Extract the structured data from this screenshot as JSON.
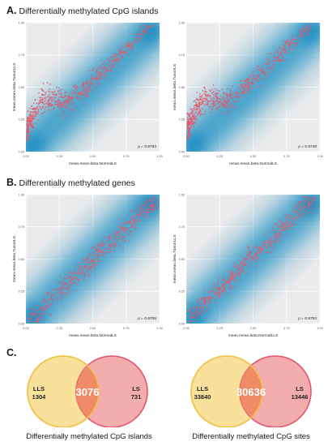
{
  "sections": {
    "a": {
      "letter": "A.",
      "title": "Differentially methylated CpG islands"
    },
    "b": {
      "letter": "B.",
      "title": "Differentially methylated genes"
    },
    "c": {
      "letter": "C."
    }
  },
  "colors": {
    "density_light": "#d6e7f1",
    "density_dark": "#1b8fc3",
    "points": "#e8586a",
    "panel_bg": "#ebebeb",
    "venn_left": "#f7d77a",
    "venn_right": "#ef8a8d",
    "venn_overlap": "#ee8b65"
  },
  "chart_data": [
    {
      "type": "scatter",
      "title": "",
      "xlabel": "mean.mean.beta.NormalLS",
      "ylabel": "mean.mean.beta.TumorLLS",
      "xlim": [
        0,
        1
      ],
      "ylim": [
        0,
        1
      ],
      "x_ticks": [
        "0.00",
        "0.25",
        "0.50",
        "0.75",
        "1.00"
      ],
      "y_ticks": [
        "0.00",
        "0.25",
        "0.50",
        "0.75",
        "1.00"
      ],
      "annotation": "ρ = 0.9793",
      "grid": true,
      "pattern": "island"
    },
    {
      "type": "scatter",
      "title": "",
      "xlabel": "mean.mean.beta.NormalLS",
      "ylabel": "mean.mean.beta.TumorLS",
      "xlim": [
        0,
        1
      ],
      "ylim": [
        0,
        1
      ],
      "x_ticks": [
        "0.00",
        "0.25",
        "0.50",
        "0.75",
        "1.00"
      ],
      "y_ticks": [
        "0.00",
        "0.25",
        "0.50",
        "0.75",
        "1.00"
      ],
      "annotation": "ρ = 0.9748",
      "grid": true,
      "pattern": "island"
    },
    {
      "type": "scatter",
      "title": "",
      "xlabel": "mean.mean.beta.NormalLS",
      "ylabel": "mean.mean.beta.TumorLS",
      "xlim": [
        0,
        1
      ],
      "ylim": [
        0,
        1
      ],
      "x_ticks": [
        "0.00",
        "0.25",
        "0.50",
        "0.75",
        "1.00"
      ],
      "y_ticks": [
        "0.00",
        "0.25",
        "0.50",
        "0.75",
        "1.00"
      ],
      "annotation": "ρ = 0.9706",
      "grid": true,
      "pattern": "gene"
    },
    {
      "type": "scatter",
      "title": "",
      "xlabel": "mean.mean.beta.NormalLLS",
      "ylabel": "mean.mean.beta.TumorLLS",
      "xlim": [
        0,
        1
      ],
      "ylim": [
        0,
        1
      ],
      "x_ticks": [
        "0.00",
        "0.25",
        "0.50",
        "0.75",
        "1.00"
      ],
      "y_ticks": [
        "0.00",
        "0.25",
        "0.50",
        "0.75",
        "1.00"
      ],
      "annotation": "ρ = 0.9793",
      "grid": true,
      "pattern": "gene"
    },
    {
      "type": "venn",
      "sets": [
        {
          "name": "LLS",
          "only": 1304
        },
        {
          "name": "LS",
          "only": 731
        }
      ],
      "overlap": 3076,
      "caption": "Differentially methylated CpG islands"
    },
    {
      "type": "venn",
      "sets": [
        {
          "name": "LLS",
          "only": 33840
        },
        {
          "name": "LS",
          "only": 13446
        }
      ],
      "overlap": 30636,
      "caption": "Differentially methylated CpG sites"
    }
  ]
}
